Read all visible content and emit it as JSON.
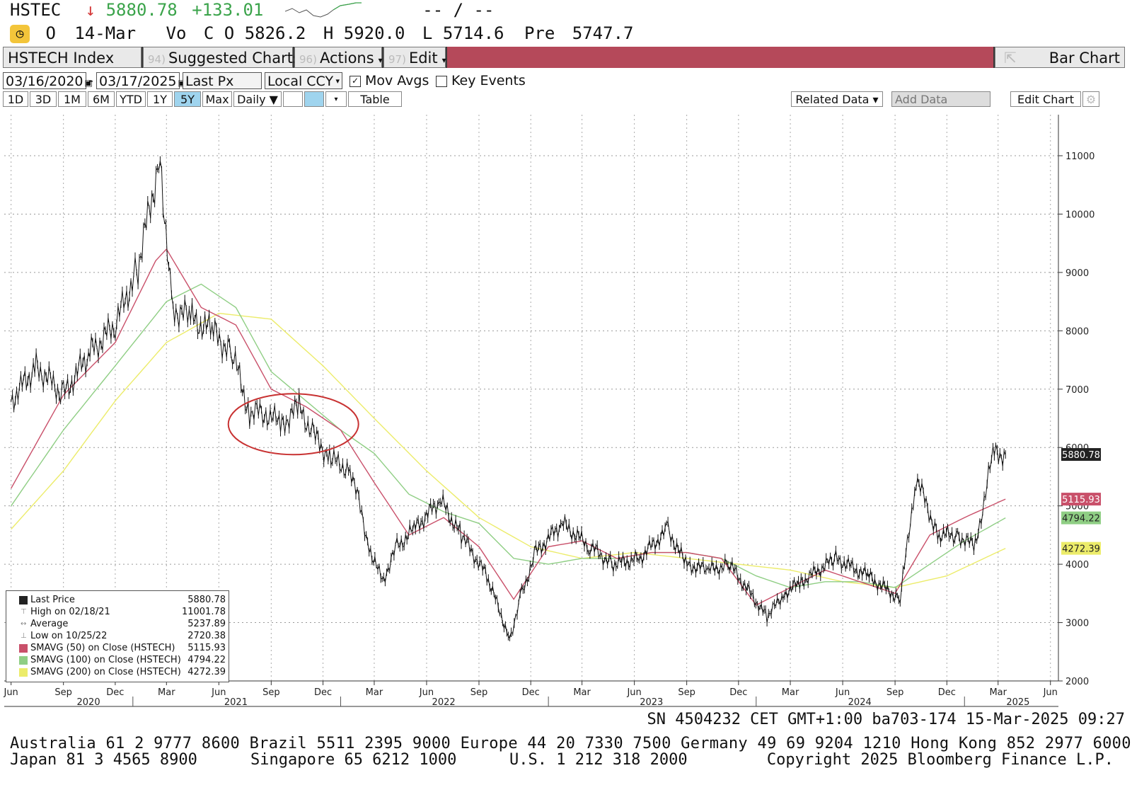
{
  "header": {
    "ticker": "HSTEC",
    "arrow": "↓",
    "last": "5880.78",
    "change": "+133.01",
    "dashes": "-- / --",
    "open_flag": "O",
    "date": "14-Mar",
    "vol_label": "Vo",
    "close_label": "C",
    "close_flag": "O",
    "close": "5826.2",
    "high_label": "H",
    "high": "5920.0",
    "low_label": "L",
    "low": "5714.6",
    "pre_label": "Pre",
    "pre": "5747.7"
  },
  "toolbar": {
    "index_name": "HSTECH Index",
    "suggested_num": "94)",
    "suggested_label": "Suggested Charts",
    "actions_num": "96)",
    "actions_label": "Actions",
    "edit_num": "97)",
    "edit_label": "Edit",
    "bar_chart_label": "Bar Chart"
  },
  "controls": {
    "start_date": "03/16/2020",
    "end_date": "03/17/2025",
    "field": "Last Px",
    "currency": "Local CCY",
    "mov_avgs": "Mov Avgs",
    "key_events": "Key Events"
  },
  "periods": [
    "1D",
    "3D",
    "1M",
    "6M",
    "YTD",
    "1Y",
    "5Y",
    "Max"
  ],
  "selected_period": "5Y",
  "frequency": "Daily",
  "table_label": "Table",
  "related_data": "Related Data",
  "add_data_placeholder": "Add Data",
  "edit_chart": "Edit Chart",
  "colors": {
    "price": "#111111",
    "sma50": "#c9506a",
    "sma100": "#8fce84",
    "sma200": "#ecec6a",
    "annotation": "#c83232"
  },
  "chart_data": {
    "type": "line",
    "title": "",
    "ylim": [
      2000,
      11000
    ],
    "yticks": [
      2000,
      3000,
      4000,
      5000,
      6000,
      7000,
      8000,
      9000,
      10000,
      11000
    ],
    "x_month_ticks": [
      "Jun",
      "Sep",
      "Dec",
      "Mar",
      "Jun",
      "Sep",
      "Dec",
      "Mar",
      "Jun",
      "Sep",
      "Dec",
      "Mar",
      "Jun",
      "Sep",
      "Dec",
      "Mar",
      "Jun",
      "Sep",
      "Dec",
      "Mar",
      "Jun"
    ],
    "x_year_labels": [
      "2020",
      "2021",
      "2022",
      "2023",
      "2024",
      "2025"
    ],
    "grid": true,
    "series": [
      {
        "name": "Last Price",
        "x": [
          "2020-06-01",
          "2020-07-15",
          "2020-09-01",
          "2020-10-15",
          "2020-12-01",
          "2021-01-10",
          "2021-02-18",
          "2021-03-10",
          "2021-04-15",
          "2021-05-20",
          "2021-06-25",
          "2021-07-25",
          "2021-08-20",
          "2021-09-20",
          "2021-10-20",
          "2021-11-15",
          "2021-12-15",
          "2022-01-20",
          "2022-02-20",
          "2022-03-15",
          "2022-04-10",
          "2022-05-10",
          "2022-06-25",
          "2022-08-01",
          "2022-09-15",
          "2022-10-25",
          "2022-11-15",
          "2022-12-10",
          "2023-01-25",
          "2023-03-15",
          "2023-04-25",
          "2023-06-10",
          "2023-07-30",
          "2023-08-30",
          "2023-10-10",
          "2023-11-15",
          "2024-01-20",
          "2024-02-20",
          "2024-03-20",
          "2024-05-20",
          "2024-07-15",
          "2024-09-10",
          "2024-10-08",
          "2024-11-15",
          "2024-12-20",
          "2025-01-20",
          "2025-02-20",
          "2025-03-14"
        ],
        "y": [
          6800,
          7400,
          6900,
          7600,
          8100,
          9100,
          11001.78,
          8400,
          8200,
          8000,
          7600,
          6600,
          6600,
          6400,
          6700,
          6200,
          5800,
          5600,
          4300,
          3700,
          4300,
          4600,
          5100,
          4500,
          3800,
          2720.38,
          3500,
          4200,
          4700,
          4300,
          4000,
          4100,
          4600,
          4000,
          3900,
          4000,
          3100,
          3500,
          3700,
          4100,
          3800,
          3400,
          5500,
          4500,
          4500,
          4300,
          5900,
          5880.78
        ]
      },
      {
        "name": "SMAVG (50) on Close (HSTECH)",
        "x": [
          "2020-06-01",
          "2020-09-01",
          "2020-12-01",
          "2021-02-10",
          "2021-03-01",
          "2021-05-01",
          "2021-07-01",
          "2021-09-01",
          "2021-11-01",
          "2022-01-01",
          "2022-03-01",
          "2022-05-01",
          "2022-07-01",
          "2022-09-01",
          "2022-11-01",
          "2023-01-01",
          "2023-03-01",
          "2023-05-01",
          "2023-07-01",
          "2023-09-01",
          "2023-11-01",
          "2024-01-01",
          "2024-03-01",
          "2024-05-01",
          "2024-07-01",
          "2024-09-01",
          "2024-11-01",
          "2025-01-01",
          "2025-03-14"
        ],
        "y": [
          5300,
          6900,
          7800,
          9200,
          9400,
          8400,
          8100,
          7000,
          6700,
          6300,
          5400,
          4500,
          4800,
          4300,
          3400,
          4300,
          4400,
          4100,
          4200,
          4200,
          4100,
          3300,
          3600,
          3900,
          3700,
          3500,
          4500,
          4800,
          5115.93
        ]
      },
      {
        "name": "SMAVG (100) on Close (HSTECH)",
        "x": [
          "2020-06-01",
          "2020-09-01",
          "2020-12-01",
          "2021-03-01",
          "2021-05-01",
          "2021-07-01",
          "2021-09-01",
          "2021-11-01",
          "2022-01-01",
          "2022-03-01",
          "2022-05-01",
          "2022-07-01",
          "2022-09-01",
          "2022-11-01",
          "2023-01-01",
          "2023-03-01",
          "2023-05-01",
          "2023-07-01",
          "2023-09-01",
          "2023-11-01",
          "2024-01-01",
          "2024-03-01",
          "2024-05-01",
          "2024-07-01",
          "2024-09-01",
          "2024-11-01",
          "2025-01-01",
          "2025-03-14"
        ],
        "y": [
          5000,
          6300,
          7400,
          8500,
          8800,
          8400,
          7300,
          6800,
          6300,
          5900,
          5200,
          4900,
          4700,
          4100,
          4000,
          4100,
          4100,
          4200,
          4200,
          4100,
          3800,
          3600,
          3700,
          3700,
          3600,
          4000,
          4400,
          4794.22
        ]
      },
      {
        "name": "SMAVG (200) on Close (HSTECH)",
        "x": [
          "2020-06-01",
          "2020-09-01",
          "2020-12-01",
          "2021-03-01",
          "2021-06-01",
          "2021-09-01",
          "2021-12-01",
          "2022-03-01",
          "2022-06-01",
          "2022-09-01",
          "2022-12-01",
          "2023-03-01",
          "2023-06-01",
          "2023-09-01",
          "2023-12-01",
          "2024-03-01",
          "2024-06-01",
          "2024-09-01",
          "2024-12-01",
          "2025-03-14"
        ],
        "y": [
          4600,
          5600,
          6800,
          7800,
          8300,
          8200,
          7400,
          6500,
          5600,
          4800,
          4300,
          4100,
          4200,
          4100,
          4000,
          3900,
          3700,
          3600,
          3800,
          4272.39
        ]
      }
    ],
    "price_label": "5880.78",
    "ma_labels": [
      "5115.93",
      "4794.22",
      "4272.39"
    ]
  },
  "legend": {
    "rows": [
      {
        "label": "Last Price",
        "value": "5880.78",
        "swatch": "#222222"
      },
      {
        "label": "High on 02/18/21",
        "value": "11001.78",
        "swatch": "none-high"
      },
      {
        "label": "Average",
        "value": "5237.89",
        "swatch": "none-avg"
      },
      {
        "label": "Low on 10/25/22",
        "value": "2720.38",
        "swatch": "none-low"
      },
      {
        "label": "SMAVG (50)  on Close (HSTECH)",
        "value": "5115.93",
        "swatch": "#c9506a"
      },
      {
        "label": "SMAVG (100)  on Close (HSTECH)",
        "value": "4794.22",
        "swatch": "#8fce84"
      },
      {
        "label": "SMAVG (200)  on Close (HSTECH)",
        "value": "4272.39",
        "swatch": "#ecec6a"
      }
    ]
  },
  "footer": {
    "session": "SN 4504232 CET  GMT+1:00 ba703-174 15-Mar-2025 09:27",
    "line1": "Australia 61 2 9777 8600 Brazil 5511 2395 9000 Europe 44 20 7330 7500 Germany 49 69 9204 1210 Hong Kong 852 2977 6000",
    "line2_left": "Japan 81 3 4565 8900",
    "line2_mid1": "Singapore 65 6212 1000",
    "line2_mid2": "U.S. 1 212 318 2000",
    "line2_right": "Copyright 2025 Bloomberg Finance L.P."
  }
}
